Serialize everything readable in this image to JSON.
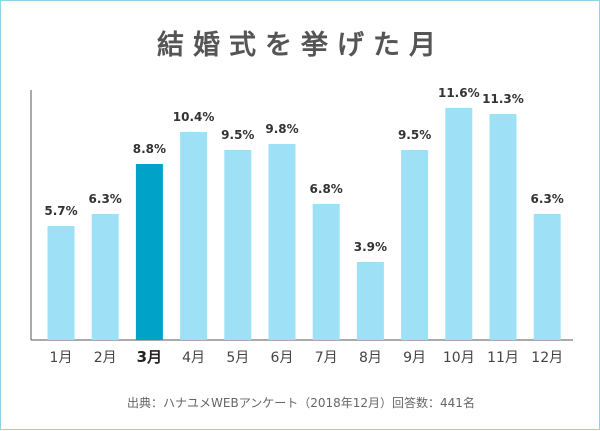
{
  "chart_data": {
    "type": "bar",
    "title": "結婚式を挙げた月",
    "categories": [
      "1月",
      "2月",
      "3月",
      "4月",
      "5月",
      "6月",
      "7月",
      "8月",
      "9月",
      "10月",
      "11月",
      "12月"
    ],
    "values": [
      5.7,
      6.3,
      8.8,
      10.4,
      9.5,
      9.8,
      6.8,
      3.9,
      9.5,
      11.6,
      11.3,
      6.3
    ],
    "value_labels": [
      "5.7%",
      "6.3%",
      "8.8%",
      "10.4%",
      "9.5%",
      "9.8%",
      "6.8%",
      "3.9%",
      "9.5%",
      "11.6%",
      "11.3%",
      "6.3%"
    ],
    "highlight_index": 2,
    "ylim": [
      0,
      12.5
    ],
    "grid": false,
    "xlabel": "",
    "ylabel": "",
    "colors": {
      "bar": "#9ee0f6",
      "highlight": "#00a2c8",
      "axis": "#555555",
      "label": "#333333"
    }
  },
  "source_note": "出典：ハナユメWEBアンケート（2018年12月）回答数：441名"
}
